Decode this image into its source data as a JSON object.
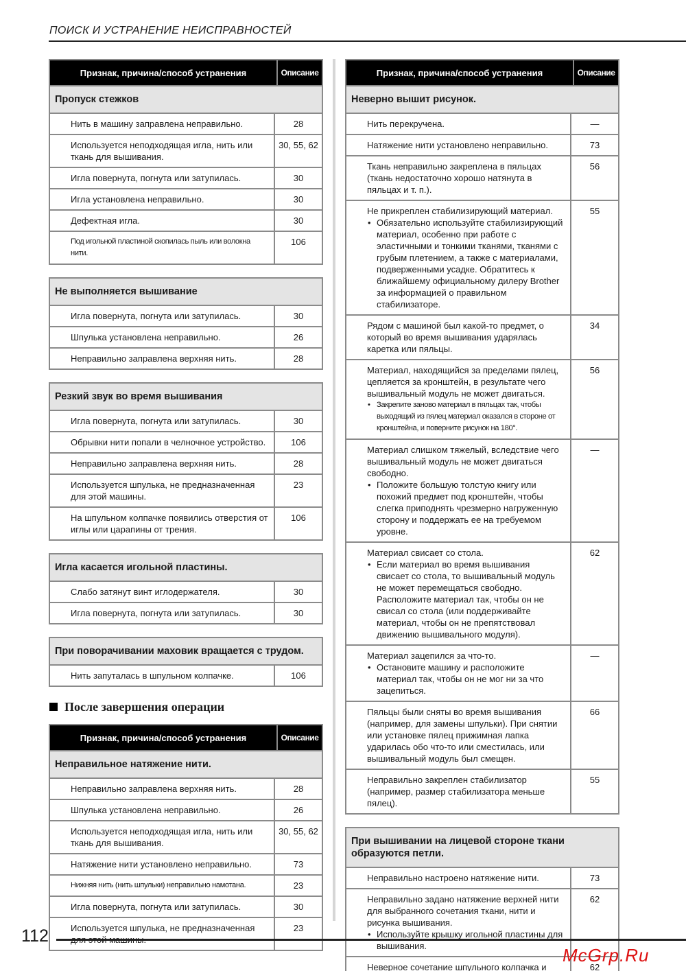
{
  "header": {
    "title": "ПОИСК И УСТРАНЕНИЕ НЕИСПРАВНОСТЕЙ"
  },
  "col_headers": {
    "cause": "Признак, причина/способ устранения",
    "ref": "Описание"
  },
  "section_heading": "После завершения операции",
  "page_number": "112",
  "watermark": "McGrp.Ru",
  "tables": [
    {
      "group": "Пропуск стежков",
      "rows": [
        {
          "text": "Нить в машину заправлена неправильно.",
          "ref": "28"
        },
        {
          "text": "Используется неподходящая игла, нить или ткань для вышивания.",
          "ref": "30, 55, 62"
        },
        {
          "text": "Игла повернута, погнута или затупилась.",
          "ref": "30"
        },
        {
          "text": "Игла установлена неправильно.",
          "ref": "30"
        },
        {
          "text": "Дефектная игла.",
          "ref": "30"
        },
        {
          "text": "Под игольной пластиной скопилась пыль или волокна нити.",
          "ref": "106",
          "small": true
        }
      ]
    },
    {
      "group": "Не выполняется вышивание",
      "rows": [
        {
          "text": "Игла повернута, погнута или затупилась.",
          "ref": "30"
        },
        {
          "text": "Шпулька установлена неправильно.",
          "ref": "26"
        },
        {
          "text": "Неправильно заправлена верхняя нить.",
          "ref": "28"
        }
      ]
    },
    {
      "group": "Резкий звук во время вышивания",
      "rows": [
        {
          "text": "Игла повернута, погнута или затупилась.",
          "ref": "30"
        },
        {
          "text": "Обрывки нити попали в челночное устройство.",
          "ref": "106"
        },
        {
          "text": "Неправильно заправлена верхняя нить.",
          "ref": "28"
        },
        {
          "text": "Используется шпулька, не предназначенная для этой машины.",
          "ref": "23"
        },
        {
          "text": "На шпульном колпачке появились отверстия от иглы или царапины от трения.",
          "ref": "106"
        }
      ]
    },
    {
      "group": "Игла касается игольной пластины.",
      "rows": [
        {
          "text": "Слабо затянут винт иглодержателя.",
          "ref": "30"
        },
        {
          "text": "Игла повернута, погнута или затупилась.",
          "ref": "30"
        }
      ]
    },
    {
      "group": "При поворачивании маховик вращается с трудом.",
      "rows": [
        {
          "text": "Нить запуталась в шпульном колпачке.",
          "ref": "106"
        }
      ]
    },
    {
      "group": "Неправильное натяжение нити.",
      "rows": [
        {
          "text": "Неправильно заправлена верхняя нить.",
          "ref": "28"
        },
        {
          "text": "Шпулька установлена неправильно.",
          "ref": "26"
        },
        {
          "text": "Используется неподходящая игла, нить или ткань для вышивания.",
          "ref": "30, 55, 62"
        },
        {
          "text": "Натяжение нити установлено неправильно.",
          "ref": "73"
        },
        {
          "text": "Нижняя нить (нить шпульки) неправильно намотана.",
          "ref": "23",
          "small": true
        },
        {
          "text": "Игла повернута, погнута или затупилась.",
          "ref": "30"
        },
        {
          "text": "Используется шпулька, не предназначенная для этой машины.",
          "ref": "23"
        }
      ]
    },
    {
      "group": "Неверно вышит рисунок.",
      "rows": [
        {
          "text": "Нить перекручена.",
          "ref": "—"
        },
        {
          "text": "Натяжение нити установлено неправильно.",
          "ref": "73"
        },
        {
          "text": "Ткань неправильно закреплена в пяльцах (ткань недостаточно хорошо натянута в пяльцах и т. п.).",
          "ref": "56"
        },
        {
          "text": "Не прикреплен стабилизирующий материал.",
          "bullets": [
            "Обязательно используйте стабилизирующий материал, особенно при работе с эластичными и тонкими тканями, тканями с грубым плетением, а также с материалами, подверженными усадке. Обратитесь к ближайшему официальному дилеру Brother за информацией о правильном стабилизаторе."
          ],
          "ref": "55"
        },
        {
          "text": "Рядом с машиной был какой-то предмет, о который во время вышивания ударялась каретка или пяльцы.",
          "ref": "34"
        },
        {
          "text": "Материал, находящийся за пределами пялец, цепляется за кронштейн, в результате чего вышивальный модуль не может двигаться.",
          "bullets": [
            "Закрепите заново материал в пяльцах так, чтобы выходящий из пялец материал оказался в стороне от кронштейна, и поверните рисунок на 180°."
          ],
          "bullets_small": true,
          "ref": "56"
        },
        {
          "text": "Материал слишком тяжелый, вследствие чего вышивальный модуль не может двигаться свободно.",
          "bullets": [
            "Положите большую толстую книгу или похожий предмет под кронштейн, чтобы слегка приподнять чрезмерно нагруженную сторону и поддержать ее на требуемом уровне."
          ],
          "ref": "—"
        },
        {
          "text": "Материал свисает со стола.",
          "bullets": [
            "Если материал во время вышивания свисает со стола, то вышивальный модуль не может перемещаться свободно. Расположите материал так, чтобы он не свисал со стола (или поддерживайте материал, чтобы он не препятствовал движению вышивального модуля)."
          ],
          "ref": "62"
        },
        {
          "text": "Материал зацепился за что-то.",
          "bullets": [
            "Остановите машину и расположите материал так, чтобы он не мог ни за что зацепиться."
          ],
          "ref": "—"
        },
        {
          "text": "Пяльцы были сняты во время вышивания (например, для замены шпульки). При снятии или установке пялец прижимная лапка ударилась обо что-то или сместилась, или вышивальный модуль был смещен.",
          "ref": "66"
        },
        {
          "text": "Неправильно закреплен стабилизатор (например, размер стабилизатора меньше пялец).",
          "ref": "55"
        }
      ]
    },
    {
      "group": "При вышивании на лицевой стороне ткани образуются петли.",
      "rows": [
        {
          "text": "Неправильно настроено натяжение нити.",
          "ref": "73"
        },
        {
          "text": "Неправильно задано натяжение верхней нити для выбранного сочетания ткани, нити и рисунка вышивания.",
          "bullets": [
            "Используйте крышку игольной пластины для вышивания."
          ],
          "ref": "62"
        },
        {
          "text": "Неверное сочетание шпульного колпачка и нижней нити (нити шпульки).",
          "ref": "62"
        }
      ]
    }
  ]
}
